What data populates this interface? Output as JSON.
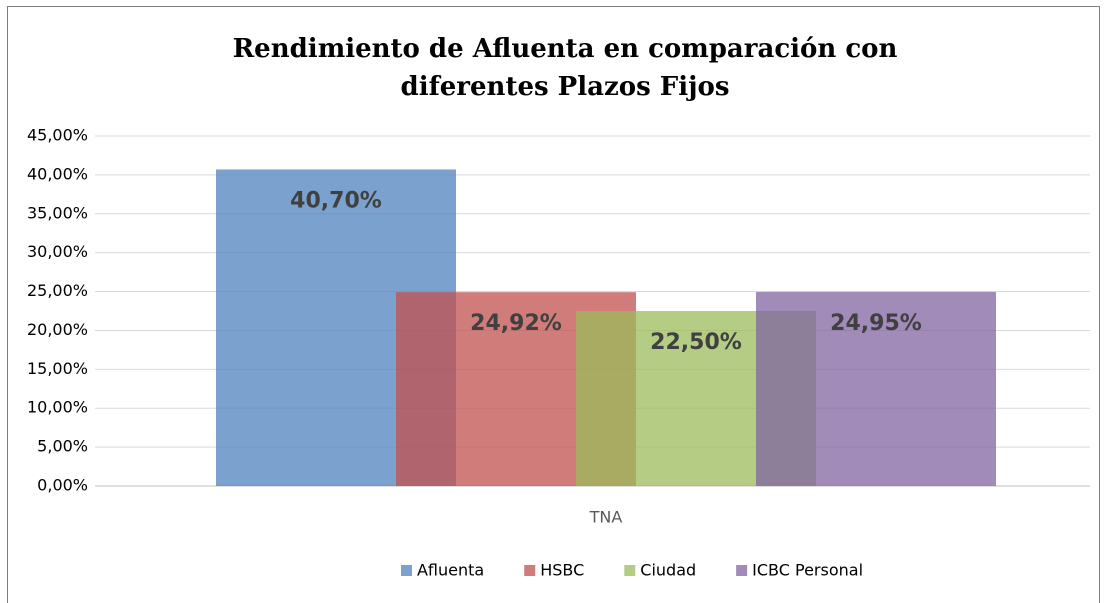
{
  "chart_data": {
    "type": "bar",
    "title": "Rendimiento de Afluenta en comparación con",
    "subtitle": "diferentes Plazos Fijos",
    "categories": [
      "TNA"
    ],
    "series": [
      {
        "name": "Afluenta",
        "color": "#4f81bd",
        "values": [
          40.7
        ],
        "value_labels": [
          "40,70%"
        ]
      },
      {
        "name": "HSBC",
        "color": "#c0504d",
        "values": [
          24.92
        ],
        "value_labels": [
          "24,92%"
        ]
      },
      {
        "name": "Ciudad",
        "color": "#9bbb59",
        "values": [
          22.5
        ],
        "value_labels": [
          "22,50%"
        ]
      },
      {
        "name": "ICBC Personal",
        "color": "#8064a2",
        "values": [
          24.95
        ],
        "value_labels": [
          "24,95%"
        ]
      }
    ],
    "ylim": [
      0,
      45
    ],
    "yticks": [
      {
        "value": 0,
        "label": "0,00%"
      },
      {
        "value": 5,
        "label": "5,00%"
      },
      {
        "value": 10,
        "label": "10,00%"
      },
      {
        "value": 15,
        "label": "15,00%"
      },
      {
        "value": 20,
        "label": "20,00%"
      },
      {
        "value": 25,
        "label": "25,00%"
      },
      {
        "value": 30,
        "label": "30,00%"
      },
      {
        "value": 35,
        "label": "35,00%"
      },
      {
        "value": 40,
        "label": "40,00%"
      },
      {
        "value": 45,
        "label": "45,00%"
      }
    ],
    "grid": true,
    "legend": "bottom"
  }
}
